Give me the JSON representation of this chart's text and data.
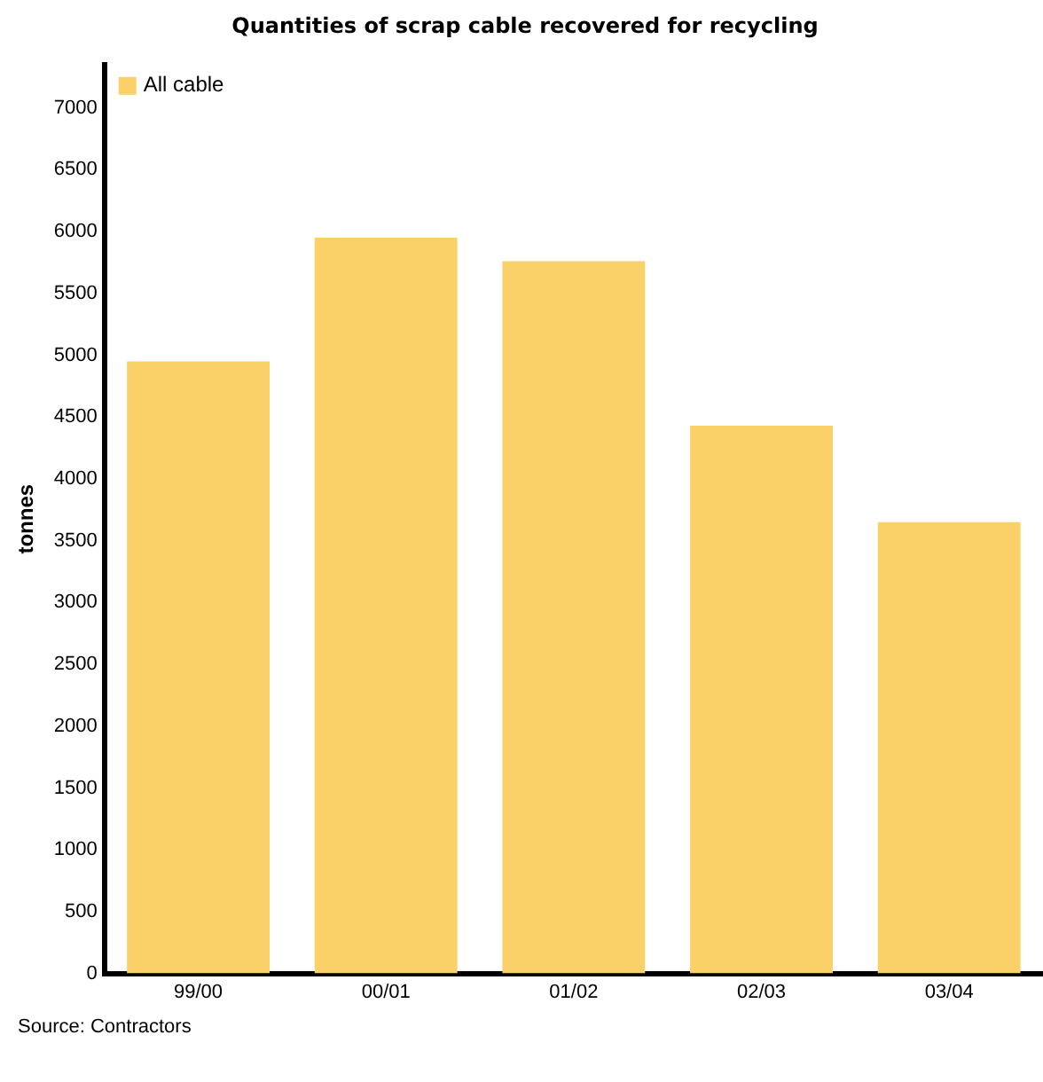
{
  "chart_data": {
    "type": "bar",
    "title": "Quantities of scrap cable recovered for recycling",
    "ylabel": "tonnes",
    "categories": [
      "99/00",
      "00/01",
      "01/02",
      "02/03",
      "03/04"
    ],
    "series": [
      {
        "name": "All cable",
        "color": "#f9d168",
        "values": [
          4950,
          5950,
          5760,
          4430,
          3650
        ]
      }
    ],
    "ylim": [
      0,
      7350
    ],
    "yticks": [
      0,
      500,
      1000,
      1500,
      2000,
      2500,
      3000,
      3500,
      4000,
      4500,
      5000,
      5500,
      6000,
      6500,
      7000
    ],
    "grid": false,
    "legend": "top left",
    "annotations": [
      "Source: Contractors"
    ]
  }
}
